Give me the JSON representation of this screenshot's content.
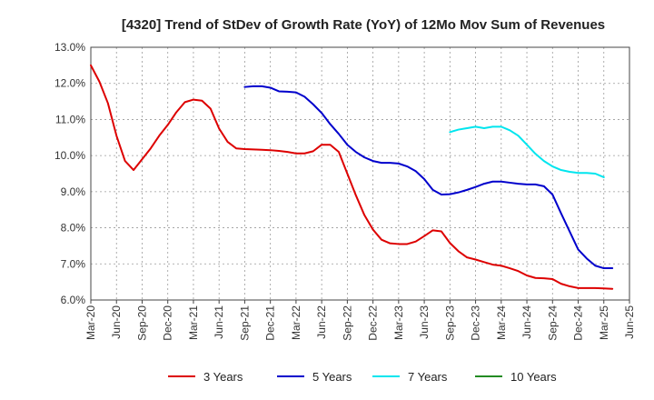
{
  "chart_data": {
    "type": "line",
    "title": "[4320]  Trend of StDev of Growth Rate (YoY) of 12Mo Mov Sum of Revenues",
    "xlabel": "",
    "ylabel": "",
    "ylim": [
      6.0,
      13.0
    ],
    "yticks": [
      "6.0%",
      "7.0%",
      "8.0%",
      "9.0%",
      "10.0%",
      "11.0%",
      "12.0%",
      "13.0%"
    ],
    "xticks": [
      "Mar-20",
      "Jun-20",
      "Sep-20",
      "Dec-20",
      "Mar-21",
      "Jun-21",
      "Sep-21",
      "Dec-21",
      "Mar-22",
      "Jun-22",
      "Sep-22",
      "Dec-22",
      "Mar-23",
      "Jun-23",
      "Sep-23",
      "Dec-23",
      "Mar-24",
      "Jun-24",
      "Sep-24",
      "Dec-24",
      "Mar-25",
      "Jun-25"
    ],
    "x_months_start": "Mar-20",
    "x_months_count": 64,
    "grid": true,
    "legend_position": "bottom",
    "series": [
      {
        "name": "3 Years",
        "color": "#dd0000",
        "start_index": 0,
        "values": [
          12.5,
          12.05,
          11.45,
          10.55,
          9.85,
          9.6,
          9.9,
          10.2,
          10.55,
          10.85,
          11.2,
          11.48,
          11.55,
          11.52,
          11.3,
          10.75,
          10.38,
          10.2,
          10.18,
          10.17,
          10.16,
          10.15,
          10.13,
          10.1,
          10.06,
          10.06,
          10.12,
          10.3,
          10.3,
          10.1,
          9.5,
          8.9,
          8.35,
          7.95,
          7.67,
          7.57,
          7.55,
          7.55,
          7.62,
          7.77,
          7.93,
          7.9,
          7.58,
          7.35,
          7.18,
          7.12,
          7.05,
          6.98,
          6.95,
          6.88,
          6.8,
          6.68,
          6.61,
          6.6,
          6.58,
          6.45,
          6.38,
          6.33,
          6.33,
          6.33,
          6.32,
          6.31
        ]
      },
      {
        "name": "5 Years",
        "color": "#0000cc",
        "start_index": 18,
        "values": [
          11.9,
          11.92,
          11.92,
          11.88,
          11.78,
          11.77,
          11.75,
          11.63,
          11.42,
          11.18,
          10.87,
          10.6,
          10.3,
          10.1,
          9.95,
          9.85,
          9.8,
          9.8,
          9.78,
          9.7,
          9.57,
          9.35,
          9.05,
          8.92,
          8.93,
          8.98,
          9.05,
          9.13,
          9.22,
          9.28,
          9.28,
          9.25,
          9.22,
          9.2,
          9.2,
          9.15,
          8.92,
          8.4,
          7.9,
          7.4,
          7.15,
          6.95,
          6.88,
          6.88
        ]
      },
      {
        "name": "7 Years",
        "color": "#00e5ee",
        "start_index": 42,
        "values": [
          10.65,
          10.72,
          10.76,
          10.8,
          10.76,
          10.8,
          10.8,
          10.7,
          10.55,
          10.3,
          10.05,
          9.85,
          9.7,
          9.6,
          9.55,
          9.52,
          9.52,
          9.5,
          9.4
        ]
      },
      {
        "name": "10 Years",
        "color": "#228b22",
        "start_index": 0,
        "values": []
      }
    ]
  }
}
